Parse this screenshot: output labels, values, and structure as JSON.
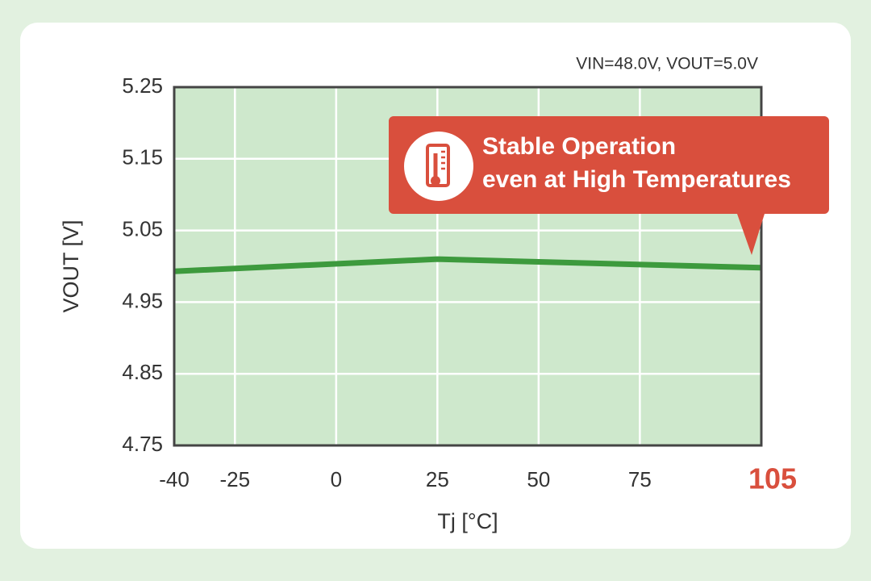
{
  "chart_data": {
    "type": "line",
    "subtitle": "VIN=48.0V, VOUT=5.0V",
    "xlabel": "Tj [°C]",
    "ylabel": "VOUT [V]",
    "annotation": [
      "Stable Operation",
      "even at High Temperatures"
    ],
    "x": [
      -40,
      25,
      105
    ],
    "values": [
      4.993,
      5.01,
      4.998
    ],
    "color": "#3d9a3d",
    "xlim": [
      -40,
      105
    ],
    "xticks": [
      -40,
      -25,
      0,
      25,
      50,
      75,
      105
    ],
    "ylim": [
      4.75,
      5.25
    ],
    "yticks": [
      4.75,
      4.85,
      4.95,
      5.05,
      5.15,
      5.25
    ],
    "grid": true,
    "highlight_xtick": 105,
    "highlight_color": "#d94f3d"
  }
}
